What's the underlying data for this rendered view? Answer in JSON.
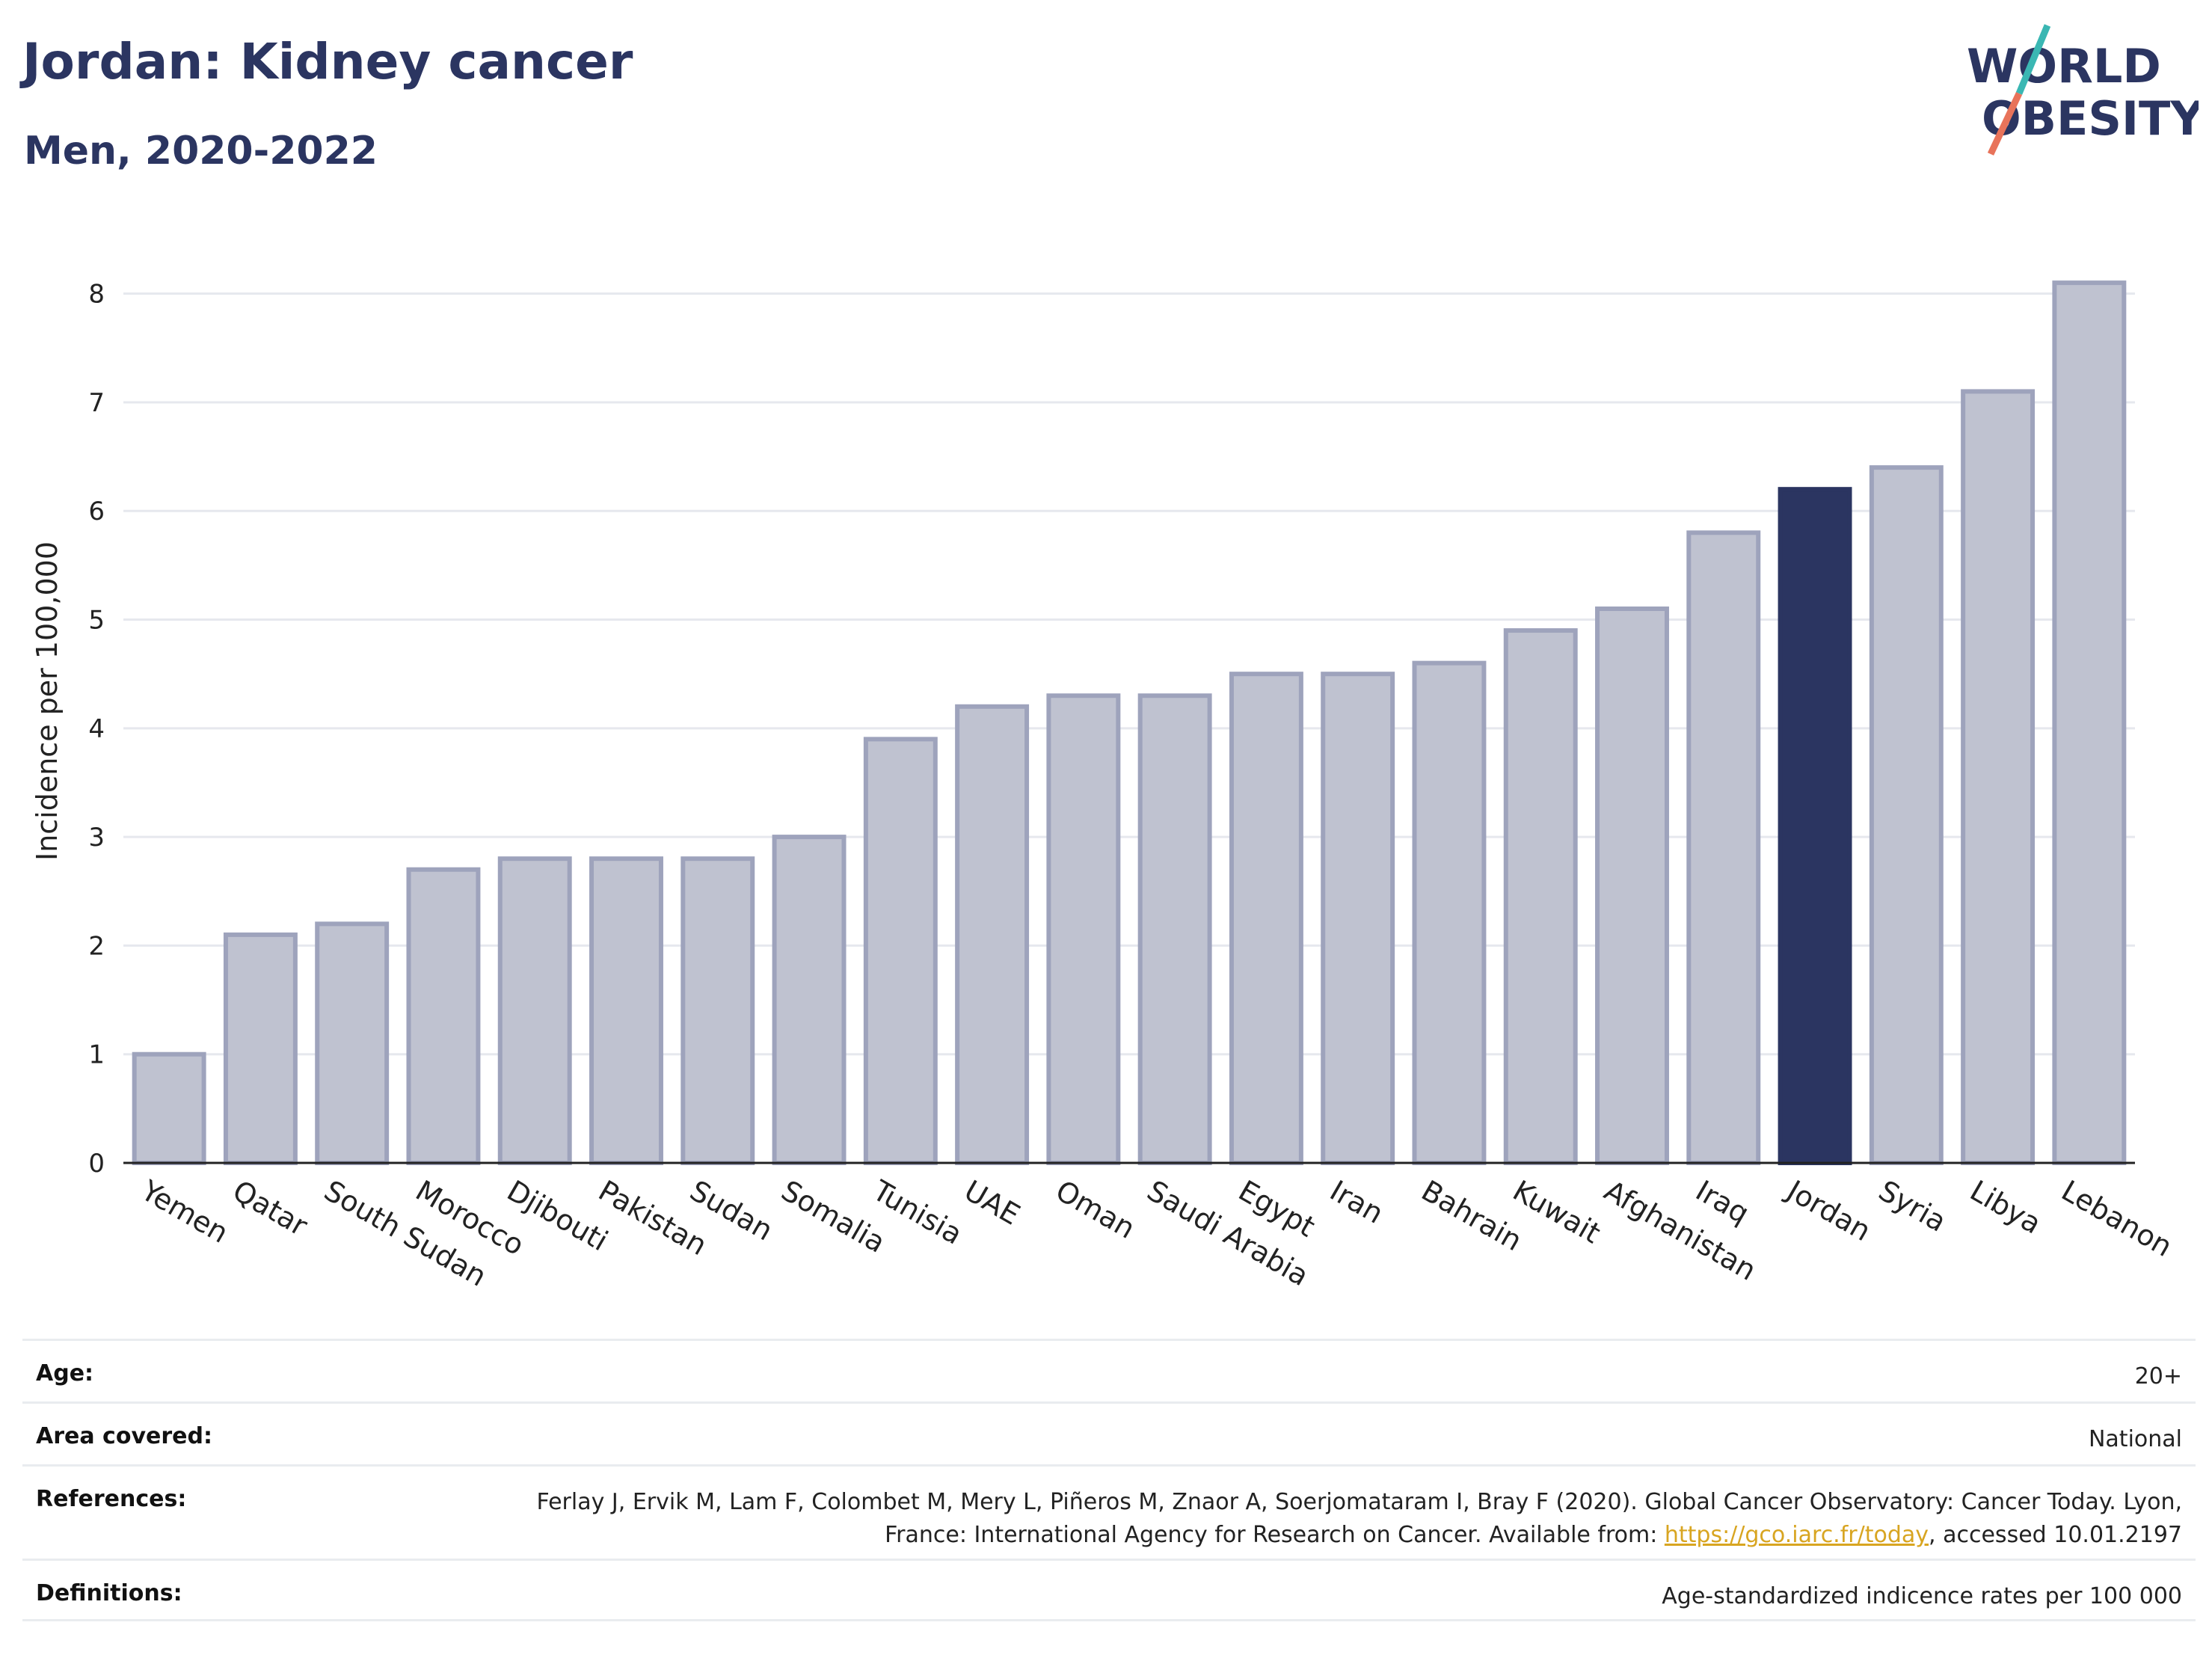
{
  "header": {
    "title": "Jordan: Kidney cancer",
    "subtitle": "Men, 2020-2022"
  },
  "logo": {
    "line1": "WORLD",
    "line2": "OBESITY",
    "colors": {
      "text": "#2b3561",
      "slash_teal": "#3ab7b3",
      "slash_coral": "#e8735a"
    }
  },
  "chart_data": {
    "type": "bar",
    "categories": [
      "Yemen",
      "Qatar",
      "South Sudan",
      "Morocco",
      "Djibouti",
      "Pakistan",
      "Sudan",
      "Somalia",
      "Tunisia",
      "UAE",
      "Oman",
      "Saudi Arabia",
      "Egypt",
      "Iran",
      "Bahrain",
      "Kuwait",
      "Afghanistan",
      "Iraq",
      "Jordan",
      "Syria",
      "Libya",
      "Lebanon"
    ],
    "values": [
      1.0,
      2.1,
      2.2,
      2.7,
      2.8,
      2.8,
      2.8,
      3.0,
      3.9,
      4.2,
      4.3,
      4.3,
      4.5,
      4.5,
      4.6,
      4.9,
      5.1,
      5.8,
      6.2,
      6.4,
      7.1,
      8.1
    ],
    "highlight": "Jordan",
    "title": "",
    "xlabel": "",
    "ylabel": "Incidence per 100,000",
    "ylim": [
      0,
      8.5
    ],
    "yticks": [
      0,
      1,
      2,
      3,
      4,
      5,
      6,
      7,
      8
    ],
    "grid": true,
    "colors": {
      "bar": "#bfc2d0",
      "bar_border": "#9ea3bc",
      "highlight": "#2b3561",
      "grid": "#e6e8ee"
    }
  },
  "info": [
    {
      "label": "Age:",
      "value": "20+"
    },
    {
      "label": "Area covered:",
      "value": "National"
    },
    {
      "label": "References:",
      "value_before": "Ferlay J, Ervik M, Lam F, Colombet M, Mery L, Piñeros M, Znaor A, Soerjomataram I, Bray F (2020). Global Cancer Observatory: Cancer Today. Lyon, France: International Agency for Research on Cancer. Available from: ",
      "link": "https://gco.iarc.fr/today",
      "value_after": ", accessed 10.01.2197"
    },
    {
      "label": "Definitions:",
      "value": "Age-standardized indicence rates per 100 000"
    }
  ]
}
